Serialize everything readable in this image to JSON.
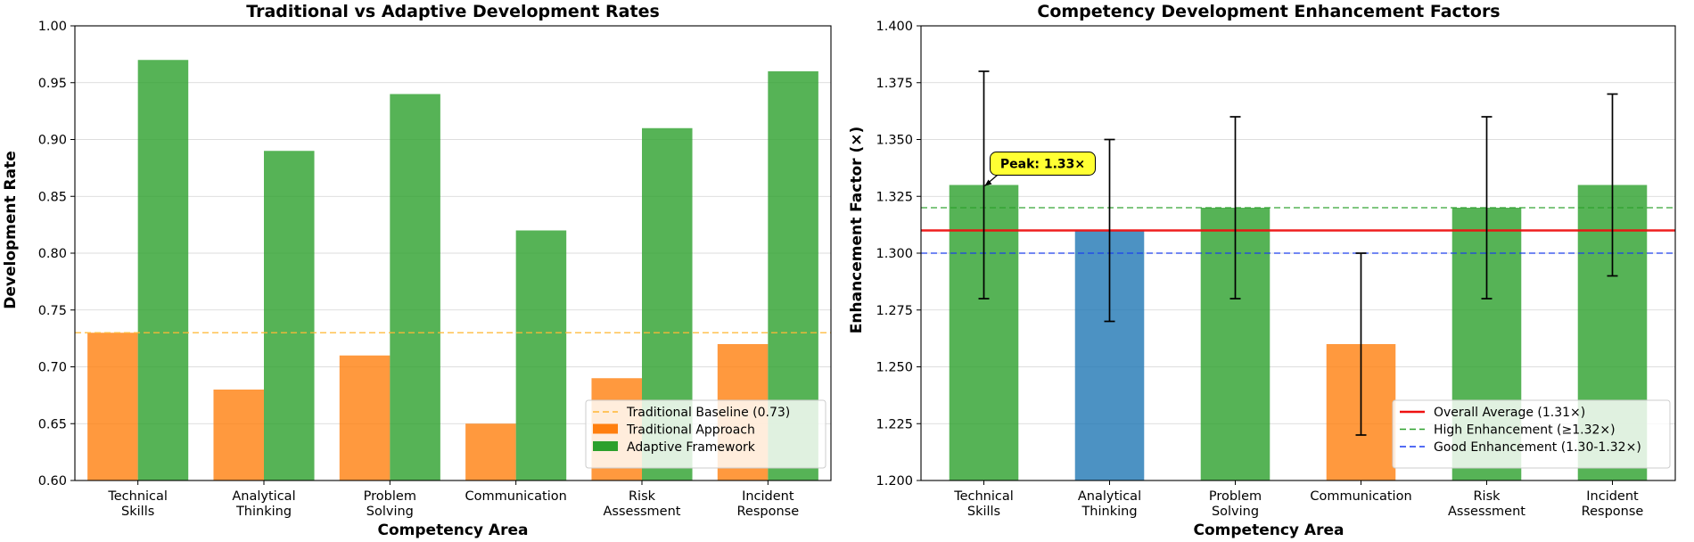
{
  "chart_data": [
    {
      "type": "bar",
      "title": "Traditional vs Adaptive Development Rates",
      "xlabel": "Competency Area",
      "ylabel": "Development Rate",
      "ylim": [
        0.6,
        1.0
      ],
      "yticks": [
        "0.60",
        "0.65",
        "0.70",
        "0.75",
        "0.80",
        "0.85",
        "0.90",
        "0.95",
        "1.00"
      ],
      "grid": true,
      "legend_position": "lower-right",
      "categories": [
        "Technical\nSkills",
        "Analytical\nThinking",
        "Problem\nSolving",
        "Communication",
        "Risk\nAssessment",
        "Incident\nResponse"
      ],
      "series": [
        {
          "name": "Traditional Approach",
          "color": "#ff7f0e",
          "values": [
            0.73,
            0.68,
            0.71,
            0.65,
            0.69,
            0.72
          ]
        },
        {
          "name": "Adaptive Framework",
          "color": "#2ca02c",
          "values": [
            0.97,
            0.89,
            0.94,
            0.82,
            0.91,
            0.96
          ]
        }
      ],
      "reference_lines": [
        {
          "name": "Traditional Baseline (0.73)",
          "value": 0.73,
          "color": "#ffb733",
          "style": "dashed"
        }
      ]
    },
    {
      "type": "bar",
      "title": "Competency Development Enhancement Factors",
      "xlabel": "Competency Area",
      "ylabel": "Enhancement Factor (×)",
      "ylim": [
        1.2,
        1.4
      ],
      "yticks": [
        "1.200",
        "1.225",
        "1.250",
        "1.275",
        "1.300",
        "1.325",
        "1.350",
        "1.375",
        "1.400"
      ],
      "grid": true,
      "legend_position": "lower-right",
      "categories": [
        "Technical\nSkills",
        "Analytical\nThinking",
        "Problem\nSolving",
        "Communication",
        "Risk\nAssessment",
        "Incident\nResponse"
      ],
      "values": [
        1.33,
        1.31,
        1.32,
        1.26,
        1.32,
        1.33
      ],
      "error_low": [
        1.28,
        1.27,
        1.28,
        1.22,
        1.28,
        1.29
      ],
      "error_high": [
        1.38,
        1.35,
        1.36,
        1.3,
        1.36,
        1.37
      ],
      "bar_colors": [
        "#2ca02c",
        "#1f77b4",
        "#2ca02c",
        "#ff7f0e",
        "#2ca02c",
        "#2ca02c"
      ],
      "reference_lines": [
        {
          "name": "Overall Average (1.31×)",
          "value": 1.31,
          "color": "#ee1111",
          "style": "solid"
        },
        {
          "name": "High Enhancement (≥1.32×)",
          "value": 1.32,
          "color": "#2ca02c",
          "style": "dashed"
        },
        {
          "name": "Good Enhancement (1.30-1.32×)",
          "value": 1.3,
          "color": "#1a3cf0",
          "style": "dashed"
        }
      ],
      "annotation": {
        "text": "Peak: 1.33×",
        "category_index": 0,
        "value": 1.33
      }
    }
  ]
}
